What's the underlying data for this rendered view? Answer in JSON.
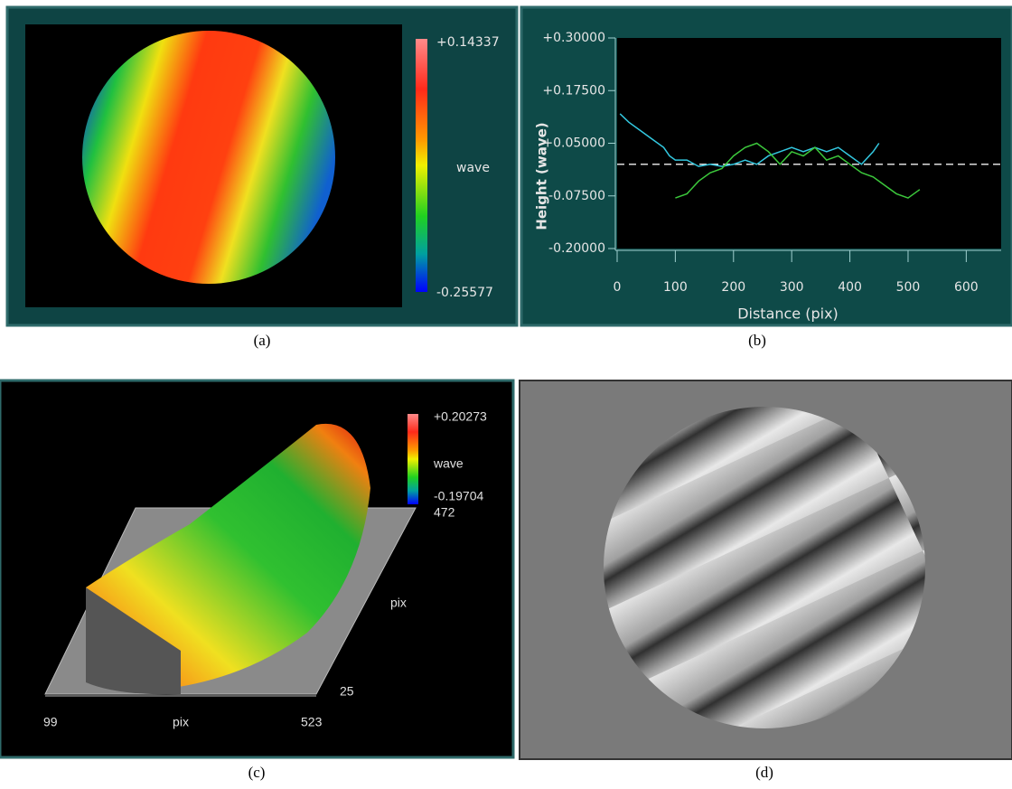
{
  "panel_a": {
    "max_label": "+0.14337",
    "unit": "wave",
    "min_label": "-0.25577",
    "caption": "(a)"
  },
  "chart_data": {
    "type": "line",
    "xlabel": "Distance (pix)",
    "ylabel": "Height (wave)",
    "xlim": [
      0,
      660
    ],
    "ylim": [
      -0.2,
      0.3
    ],
    "xticks": [
      0,
      100,
      200,
      300,
      400,
      500,
      600
    ],
    "yticks": [
      {
        "value": 0.3,
        "label": "+0.30000"
      },
      {
        "value": 0.175,
        "label": "+0.17500"
      },
      {
        "value": 0.05,
        "label": "+0.05000"
      },
      {
        "value": -0.075,
        "label": "-0.07500"
      },
      {
        "value": -0.2,
        "label": "-0.20000"
      }
    ],
    "hline": 0,
    "series": [
      {
        "color": "#33c8e0",
        "x": [
          5,
          20,
          40,
          60,
          80,
          90,
          100,
          120,
          140,
          160,
          180,
          200,
          220,
          240,
          260,
          280,
          300,
          320,
          340,
          360,
          380,
          400,
          420,
          440,
          450
        ],
        "values": [
          0.12,
          0.1,
          0.08,
          0.06,
          0.04,
          0.02,
          0.01,
          0.01,
          -0.005,
          0.0,
          -0.005,
          0.0,
          0.01,
          0.0,
          0.02,
          0.03,
          0.04,
          0.03,
          0.04,
          0.03,
          0.04,
          0.02,
          0.0,
          0.03,
          0.05
        ]
      },
      {
        "color": "#3cc83c",
        "x": [
          100,
          120,
          140,
          160,
          180,
          200,
          220,
          240,
          260,
          280,
          300,
          320,
          340,
          360,
          380,
          400,
          420,
          440,
          460,
          480,
          500,
          520
        ],
        "values": [
          -0.08,
          -0.07,
          -0.04,
          -0.02,
          -0.01,
          0.02,
          0.04,
          0.05,
          0.03,
          0.0,
          0.03,
          0.02,
          0.04,
          0.01,
          0.02,
          0.0,
          -0.02,
          -0.03,
          -0.05,
          -0.07,
          -0.08,
          -0.06
        ]
      }
    ],
    "caption": "(b)"
  },
  "panel_c": {
    "max_label": "+0.20273",
    "unit": "wave",
    "min_label": "-0.19704",
    "y_max": "472",
    "y_label": "pix",
    "y_min": "25",
    "x_min": "99",
    "x_label": "pix",
    "x_max": "523",
    "caption": "(c)"
  },
  "panel_d": {
    "caption": "(d)"
  }
}
